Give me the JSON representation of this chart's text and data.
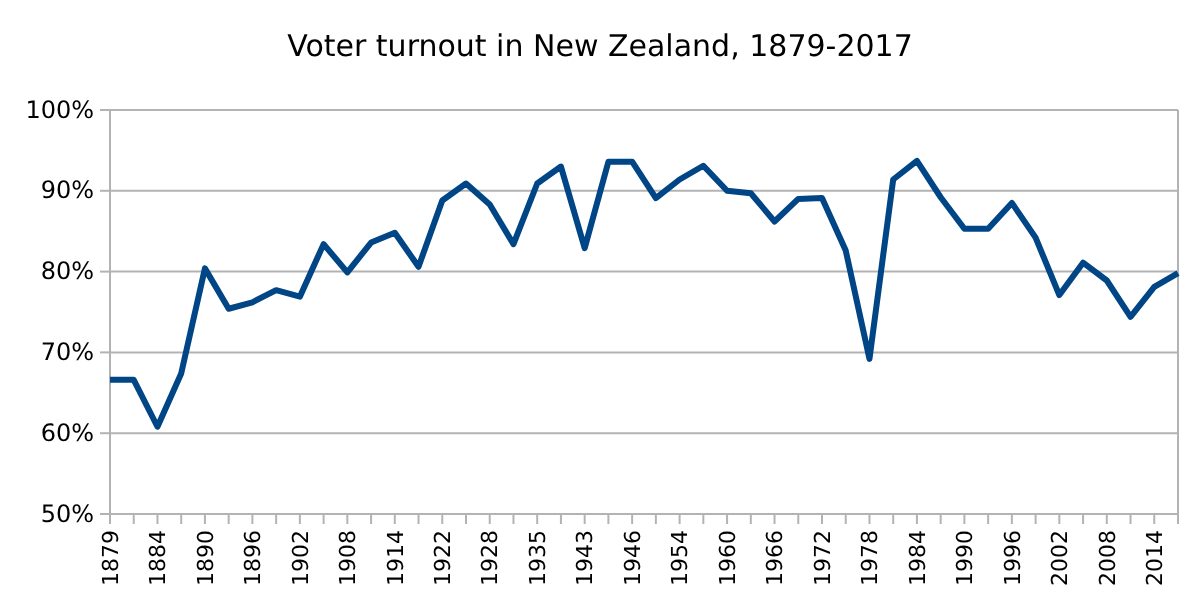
{
  "chart_data": {
    "type": "line",
    "title": "Voter turnout in New Zealand, 1879-2017",
    "categories": [
      "1879",
      null,
      "1884",
      null,
      "1890",
      null,
      "1896",
      null,
      "1902",
      null,
      "1908",
      null,
      "1914",
      null,
      "1922",
      null,
      "1928",
      null,
      "1935",
      null,
      "1943",
      null,
      "1946",
      null,
      "1954",
      null,
      "1960",
      null,
      "1966",
      null,
      "1972",
      null,
      "1978",
      null,
      "1984",
      null,
      "1990",
      null,
      "1996",
      null,
      "2002",
      null,
      "2008",
      null,
      "2014",
      null
    ],
    "series": [
      {
        "color": "#004586",
        "values": [
          66.6,
          66.6,
          60.8,
          67.4,
          80.4,
          75.4,
          76.2,
          77.7,
          76.9,
          83.4,
          79.9,
          83.6,
          84.8,
          80.6,
          88.8,
          90.9,
          88.3,
          83.4,
          90.9,
          93.0,
          82.9,
          93.6,
          93.6,
          89.1,
          91.4,
          93.1,
          90.0,
          89.7,
          86.2,
          89.0,
          89.1,
          82.6,
          69.2,
          91.4,
          93.7,
          89.2,
          85.3,
          85.3,
          88.5,
          84.2,
          77.1,
          81.1,
          78.9,
          74.4,
          78.1,
          79.8
        ]
      }
    ],
    "ylim": [
      50,
      100
    ],
    "yticks": [
      {
        "value": 50,
        "label": "50%"
      },
      {
        "value": 60,
        "label": "60%"
      },
      {
        "value": 70,
        "label": "70%"
      },
      {
        "value": 80,
        "label": "80%"
      },
      {
        "value": 90,
        "label": "90%"
      },
      {
        "value": 100,
        "label": "100%"
      }
    ],
    "grid": "y",
    "marker": "none",
    "line_style": "solid"
  }
}
